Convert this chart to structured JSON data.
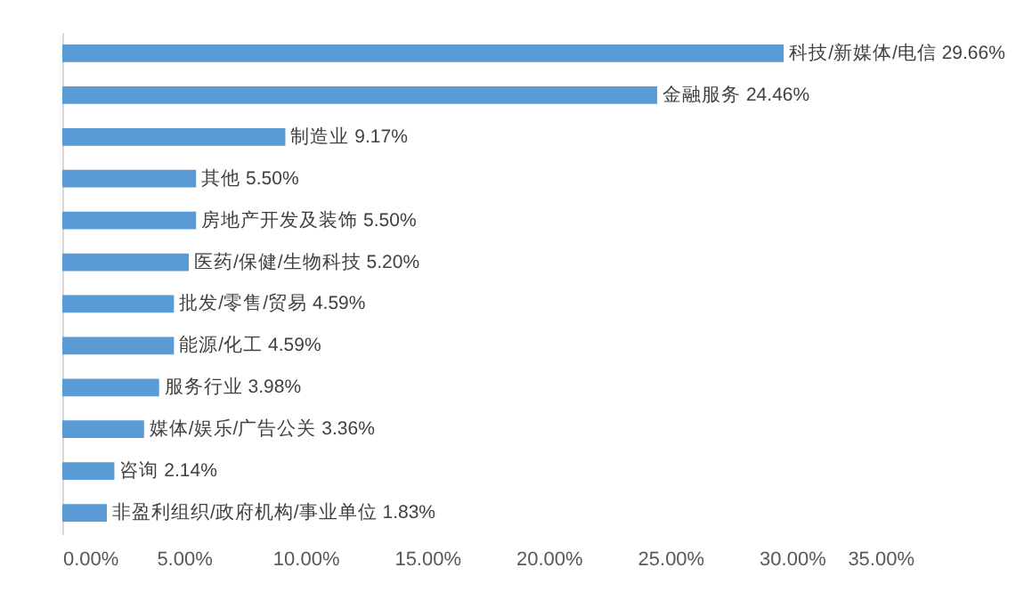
{
  "chart_data": {
    "type": "bar",
    "orientation": "horizontal",
    "categories": [
      "科技/新媒体/电信",
      "金融服务",
      "制造业",
      "其他",
      "房地产开发及装饰",
      "医药/保健/生物科技",
      "批发/零售/贸易",
      "能源/化工",
      "服务行业",
      "媒体/娱乐/广告公关",
      "咨询",
      "非盈利组织/政府机构/事业单位"
    ],
    "values": [
      29.66,
      24.46,
      9.17,
      5.5,
      5.5,
      5.2,
      4.59,
      4.59,
      3.98,
      3.36,
      2.14,
      1.83
    ],
    "value_labels": [
      "29.66%",
      "24.46%",
      "9.17%",
      "5.50%",
      "5.50%",
      "5.20%",
      "4.59%",
      "4.59%",
      "3.98%",
      "3.36%",
      "2.14%",
      "1.83%"
    ],
    "color": "#5b9bd5",
    "xlim": [
      0,
      35
    ],
    "xticks": [
      {
        "value": 0,
        "label": "0.00%"
      },
      {
        "value": 5,
        "label": "5.00%"
      },
      {
        "value": 10,
        "label": "10.00%"
      },
      {
        "value": 15,
        "label": "15.00%"
      },
      {
        "value": 20,
        "label": "20.00%"
      },
      {
        "value": 25,
        "label": "25.00%"
      },
      {
        "value": 30,
        "label": "30.00%"
      },
      {
        "value": 35,
        "label": "35.00%"
      }
    ],
    "tick_labels": "x",
    "grid": false
  }
}
